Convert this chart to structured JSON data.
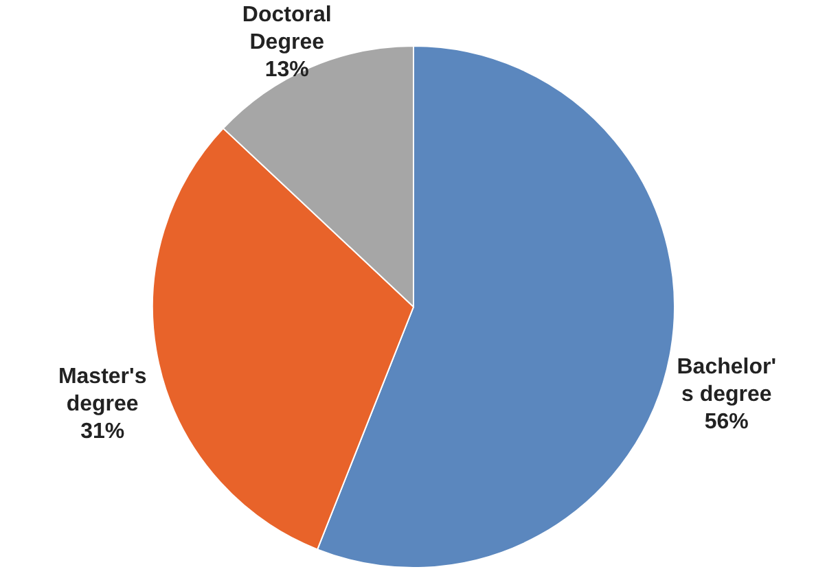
{
  "chart_data": {
    "type": "pie",
    "categories": [
      "Bachelor's degree",
      "Master's degree",
      "Doctoral Degree"
    ],
    "values": [
      56,
      31,
      13
    ],
    "value_labels": [
      "56%",
      "31%",
      "13%"
    ],
    "colors": [
      "#5b87be",
      "#e8632a",
      "#a6a6a6"
    ],
    "legend": false
  }
}
